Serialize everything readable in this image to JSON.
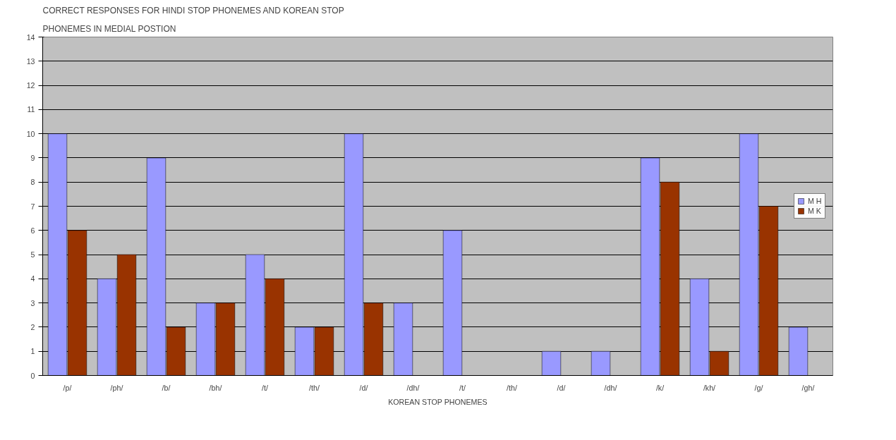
{
  "chart_data": {
    "type": "bar",
    "title": "CORRECT RESPONSES FOR HINDI STOP PHONEMES AND KOREAN STOP",
    "subtitle": "PHONEMES IN MEDIAL POSTION",
    "xlabel": "KOREAN STOP PHONEMES",
    "categories": [
      "/p/",
      "/ph/",
      "/b/",
      "/bh/",
      "/t/",
      "/th/",
      "/d/",
      "/dh/",
      "/t/",
      "/th/",
      "/d/",
      "/dh/",
      "/k/",
      "/kh/",
      "/g/",
      "/gh/"
    ],
    "series": [
      {
        "name": "M H",
        "color": "#9999ff",
        "values": [
          10,
          4,
          9,
          3,
          5,
          2,
          10,
          3,
          6,
          null,
          1,
          1,
          9,
          4,
          10,
          2
        ]
      },
      {
        "name": "M K",
        "color": "#993300",
        "values": [
          6,
          5,
          2,
          3,
          4,
          2,
          3,
          null,
          null,
          null,
          null,
          null,
          8,
          1,
          7,
          null
        ]
      }
    ],
    "ylim": [
      0,
      14
    ],
    "yticks": [
      0,
      1,
      2,
      3,
      4,
      5,
      6,
      7,
      8,
      9,
      10,
      11,
      12,
      13,
      14
    ],
    "grid": "y",
    "legend": "right"
  }
}
